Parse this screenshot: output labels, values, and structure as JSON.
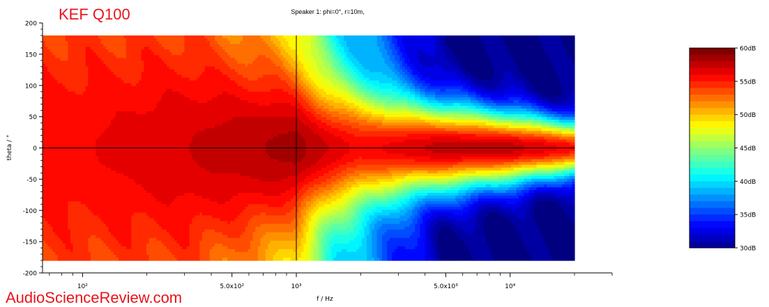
{
  "brand_label": "KEF Q100",
  "watermark": "AudioScienceReview.com",
  "chart_data": {
    "type": "heatmap",
    "title": "Speaker 1: phi=0°, r=10m,",
    "xlabel": "f / Hz",
    "ylabel": "theta / °",
    "x_scale": "log",
    "xlim": [
      65,
      30000
    ],
    "data_x_range": [
      65,
      20000
    ],
    "ylim": [
      -200,
      200
    ],
    "data_y_range": [
      -180,
      180
    ],
    "y_ticks": [
      {
        "value": 200,
        "label": "200"
      },
      {
        "value": 150,
        "label": "150"
      },
      {
        "value": 100,
        "label": "100"
      },
      {
        "value": 50,
        "label": "50"
      },
      {
        "value": 0,
        "label": "0"
      },
      {
        "value": -50,
        "label": "-50"
      },
      {
        "value": -100,
        "label": "-100"
      },
      {
        "value": -150,
        "label": "-150"
      },
      {
        "value": -200,
        "label": "-200"
      }
    ],
    "x_ticks": [
      {
        "value": 100,
        "label": "10²"
      },
      {
        "value": 500,
        "label": "5.0x10²"
      },
      {
        "value": 1000,
        "label": "10³"
      },
      {
        "value": 5000,
        "label": "5.0x10³"
      },
      {
        "value": 10000,
        "label": "10⁴"
      }
    ],
    "reference_lines": {
      "x": 1000,
      "y": 0
    },
    "colorbar": {
      "min": 30,
      "max": 60,
      "unit": "dB",
      "ticks": [
        {
          "value": 60,
          "label": "60dB"
        },
        {
          "value": 55,
          "label": "55dB"
        },
        {
          "value": 50,
          "label": "50dB"
        },
        {
          "value": 45,
          "label": "45dB"
        },
        {
          "value": 40,
          "label": "40dB"
        },
        {
          "value": 35,
          "label": "35dB"
        },
        {
          "value": 30,
          "label": "30dB"
        }
      ]
    },
    "beamwidth_half_angle_deg": [
      {
        "f": 65,
        "angle": 180
      },
      {
        "f": 300,
        "angle": 180
      },
      {
        "f": 500,
        "angle": 170
      },
      {
        "f": 800,
        "angle": 150
      },
      {
        "f": 1000,
        "angle": 130
      },
      {
        "f": 1300,
        "angle": 110
      },
      {
        "f": 2000,
        "angle": 95
      },
      {
        "f": 3000,
        "angle": 80
      },
      {
        "f": 5000,
        "angle": 75
      },
      {
        "f": 10000,
        "angle": 60
      },
      {
        "f": 20000,
        "angle": 45
      }
    ],
    "on_axis_level_db": [
      {
        "f": 65,
        "db": 56
      },
      {
        "f": 200,
        "db": 57
      },
      {
        "f": 500,
        "db": 58
      },
      {
        "f": 1000,
        "db": 59
      },
      {
        "f": 2000,
        "db": 56
      },
      {
        "f": 5000,
        "db": 58
      },
      {
        "f": 10000,
        "db": 58
      },
      {
        "f": 20000,
        "db": 56
      }
    ],
    "off_axis_floor_db": [
      {
        "f": 65,
        "db": 54
      },
      {
        "f": 300,
        "db": 53
      },
      {
        "f": 600,
        "db": 50
      },
      {
        "f": 1000,
        "db": 48
      },
      {
        "f": 1500,
        "db": 41
      },
      {
        "f": 3000,
        "db": 35
      },
      {
        "f": 5000,
        "db": 30
      },
      {
        "f": 20000,
        "db": 30
      }
    ]
  }
}
